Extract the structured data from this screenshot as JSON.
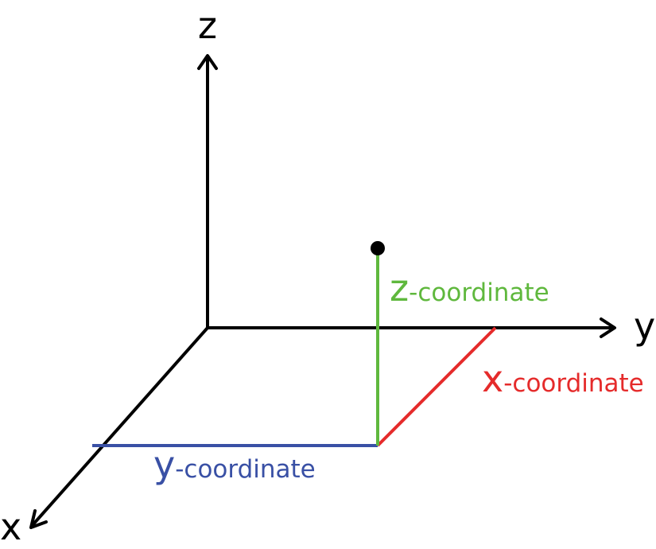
{
  "axes": {
    "z_label": "z",
    "y_label": "y",
    "x_label": "x"
  },
  "coordinates": {
    "z": {
      "letter": "z",
      "suffix": "-coordinate",
      "color": "#5fb83d"
    },
    "x": {
      "letter": "x",
      "suffix": "-coordinate",
      "color": "#e52b2b"
    },
    "y": {
      "letter": "y",
      "suffix": "-coordinate",
      "color": "#3950a5"
    }
  },
  "point_color": "#000000"
}
